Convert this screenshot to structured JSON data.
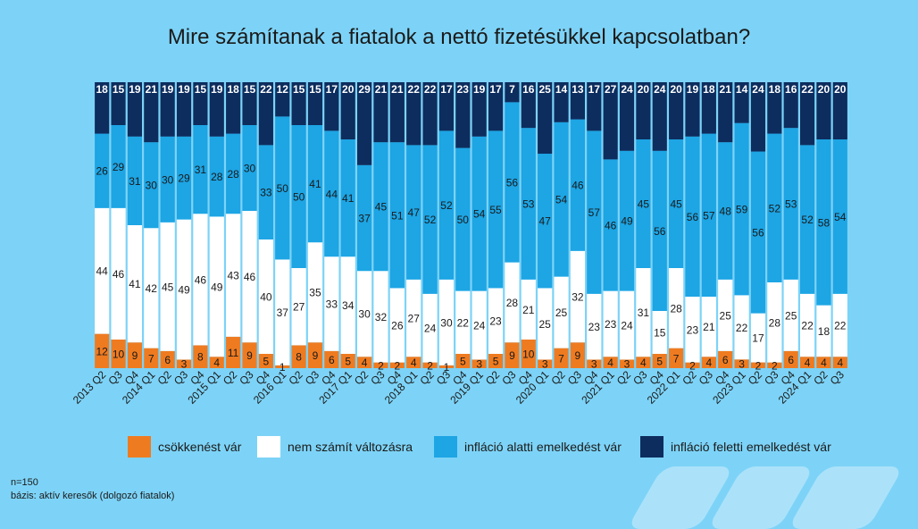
{
  "chart_data": {
    "type": "bar",
    "stacked": true,
    "normalized": true,
    "title": "Mire számítanak a fiatalok a nettó fizetésükkel kapcsolatban?",
    "categories": [
      "2013 Q2",
      "Q3",
      "Q4",
      "2014 Q1",
      "Q2",
      "Q3",
      "Q4",
      "2015 Q1",
      "Q2",
      "Q3",
      "Q4",
      "2016 Q1",
      "Q2",
      "Q3",
      "Q4",
      "2017 Q1",
      "Q2",
      "Q3",
      "Q4",
      "2018 Q1",
      "Q2",
      "Q3",
      "Q4",
      "2019 Q1",
      "Q2",
      "Q3",
      "Q4",
      "2020 Q1",
      "Q2",
      "Q3",
      "Q4",
      "2021 Q1",
      "Q2",
      "Q3",
      "Q4",
      "2022 Q1",
      "Q2",
      "Q3",
      "Q4",
      "2023 Q1",
      "Q2",
      "Q3",
      "Q4",
      "2024 Q1",
      "Q2",
      "Q3"
    ],
    "series": [
      {
        "name": "csökkenést vár",
        "color": "#ef7b21",
        "label_color": "#1a1a1a",
        "values": [
          12,
          10,
          9,
          7,
          6,
          3,
          8,
          4,
          11,
          9,
          5,
          1,
          8,
          9,
          6,
          5,
          4,
          2,
          2,
          4,
          2,
          1,
          5,
          3,
          5,
          9,
          10,
          3,
          7,
          9,
          3,
          4,
          3,
          4,
          5,
          7,
          2,
          4,
          6,
          3,
          2,
          2,
          6,
          4,
          4,
          4
        ]
      },
      {
        "name": "nem számít változásra",
        "color": "#ffffff",
        "label_color": "#1a1a1a",
        "values": [
          44,
          46,
          41,
          42,
          45,
          49,
          46,
          49,
          43,
          46,
          40,
          37,
          27,
          35,
          33,
          34,
          30,
          32,
          26,
          27,
          24,
          30,
          22,
          24,
          23,
          28,
          21,
          25,
          25,
          32,
          23,
          23,
          24,
          31,
          15,
          28,
          23,
          21,
          25,
          22,
          17,
          28,
          25,
          22,
          18,
          22
        ]
      },
      {
        "name": "infláció alatti emelkedést vár",
        "color": "#1da5e4",
        "label_color": "#1a1a1a",
        "values": [
          26,
          29,
          31,
          30,
          30,
          29,
          31,
          28,
          28,
          30,
          33,
          50,
          50,
          41,
          44,
          41,
          37,
          45,
          51,
          47,
          52,
          52,
          50,
          54,
          55,
          56,
          53,
          47,
          54,
          46,
          57,
          46,
          49,
          45,
          56,
          45,
          56,
          57,
          48,
          59,
          56,
          52,
          53,
          52,
          58,
          54
        ]
      },
      {
        "name": "infláció feletti emelkedést vár",
        "color": "#0d2d5e",
        "label_color": "#ffffff",
        "values": [
          18,
          15,
          19,
          21,
          19,
          19,
          15,
          19,
          18,
          15,
          22,
          12,
          15,
          15,
          17,
          20,
          29,
          21,
          21,
          22,
          22,
          17,
          23,
          19,
          17,
          7,
          16,
          25,
          14,
          13,
          17,
          27,
          24,
          20,
          24,
          20,
          19,
          18,
          21,
          14,
          24,
          18,
          16,
          22,
          20,
          20
        ]
      }
    ]
  },
  "legend": {
    "items": [
      {
        "label": "csökkenést vár"
      },
      {
        "label": "nem számít változásra"
      },
      {
        "label": "infláció alatti emelkedést vár"
      },
      {
        "label": "infláció feletti emelkedést vár"
      }
    ]
  },
  "footnote": {
    "n": "n=150",
    "base": "bázis: aktív keresők (dolgozó fiatalok)"
  }
}
